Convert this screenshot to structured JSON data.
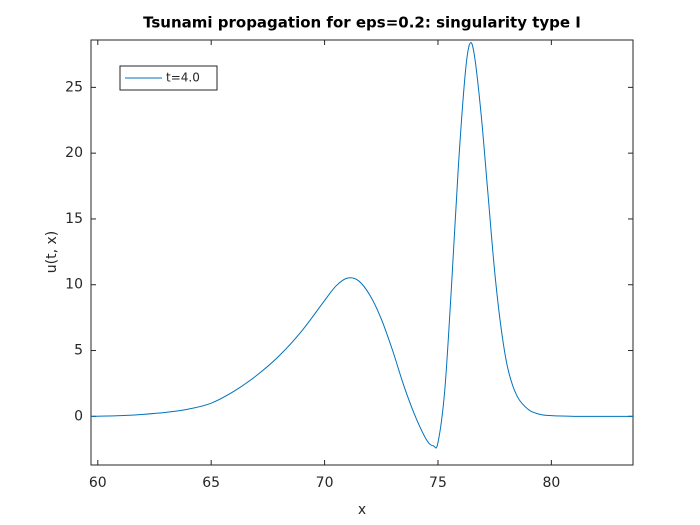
{
  "chart_data": {
    "type": "line",
    "title": "Tsunami propagation for eps=0.2: singularity type I",
    "x_label": "x",
    "y_label": "u(t, x)",
    "x": [
      59.7,
      61,
      62,
      63,
      64,
      65,
      66,
      67,
      68,
      69,
      70,
      70.5,
      71,
      71.5,
      72,
      72.5,
      73,
      73.5,
      74,
      74.5,
      74.8,
      75.0,
      75.3,
      75.6,
      75.9,
      76.2,
      76.4,
      76.6,
      76.9,
      77.2,
      77.5,
      77.8,
      78.1,
      78.5,
      79,
      79.5,
      80,
      81,
      82,
      83.6
    ],
    "series": [
      {
        "name": "t=4.0",
        "color": "#0072bd",
        "values": [
          0,
          0.05,
          0.15,
          0.3,
          0.55,
          1.0,
          1.9,
          3.1,
          4.6,
          6.5,
          8.8,
          9.9,
          10.5,
          10.3,
          9.2,
          7.4,
          5.0,
          2.3,
          0,
          -1.8,
          -2.25,
          -2.0,
          2,
          10,
          19,
          26,
          28.3,
          27.5,
          23,
          17,
          11,
          6.5,
          3.5,
          1.5,
          0.5,
          0.15,
          0.05,
          0,
          0,
          0
        ]
      }
    ],
    "xlim": [
      59.7,
      83.6
    ],
    "xticks": [
      60,
      65,
      70,
      75,
      80
    ],
    "ylim": [
      -3.7,
      28.6
    ],
    "yticks": [
      0,
      5,
      10,
      15,
      20,
      25
    ],
    "legend": "upper left",
    "grid": false
  }
}
